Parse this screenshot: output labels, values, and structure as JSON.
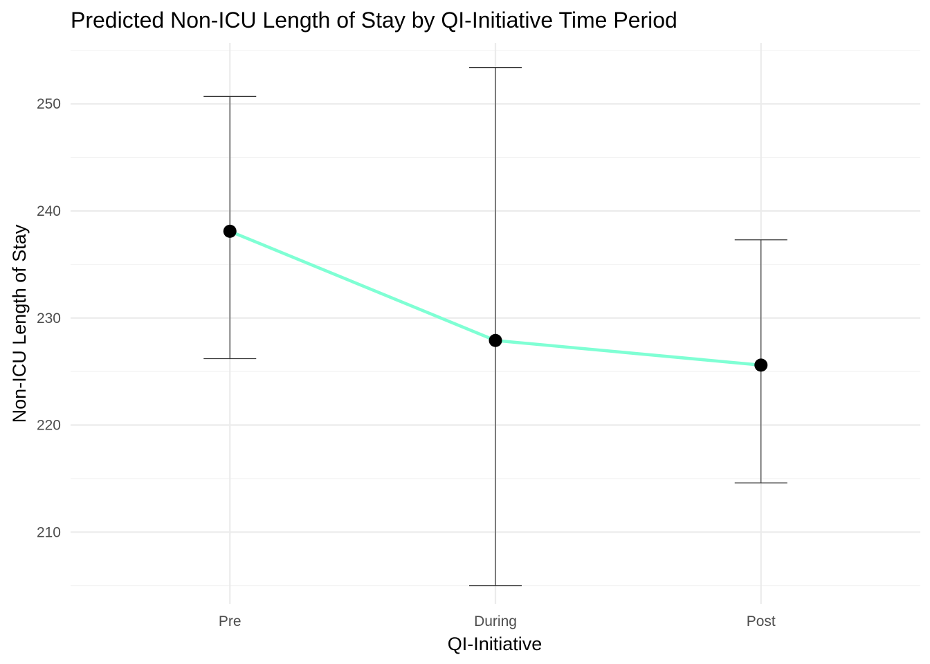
{
  "chart_data": {
    "type": "line",
    "title": "Predicted Non-ICU Length of Stay by QI-Initiative Time Period",
    "xlabel": "QI-Initiative",
    "ylabel": "Non-ICU Length of Stay",
    "categories": [
      "Pre",
      "During",
      "Post"
    ],
    "values": [
      238.1,
      227.9,
      225.6
    ],
    "error_low": [
      226.2,
      205.0,
      214.6
    ],
    "error_high": [
      250.7,
      253.4,
      237.3
    ],
    "ylim": [
      203.3,
      255.7
    ],
    "yticks": [
      210,
      220,
      230,
      240,
      250
    ],
    "grid": true,
    "legend": "none",
    "colors": {
      "line": "#7fffd4",
      "point": "#000000",
      "errorbar": "#333333"
    }
  }
}
